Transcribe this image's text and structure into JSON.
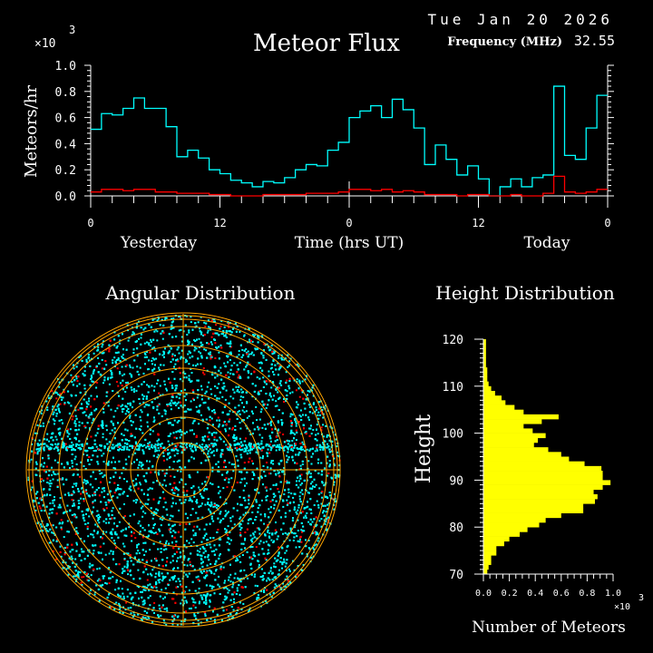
{
  "header": {
    "date": "Tue Jan 20 2026",
    "frequency_label": "Frequency (MHz)",
    "frequency_value": "32.55"
  },
  "colors": {
    "background": "#000000",
    "flux_all": "#00ffff",
    "flux_selected": "#ff0000",
    "rings": "#ffa500",
    "height_bars": "#ffff00",
    "axes": "#ffffff"
  },
  "chart_data": [
    {
      "type": "line",
      "step": true,
      "title": "Meteor Flux",
      "ylabel": "Meteors/hr",
      "xlabel": "Time (hrs UT)",
      "yscale_label": "×10",
      "yscale_exp": "3",
      "day_labels": [
        "Yesterday",
        "Today"
      ],
      "xlim": [
        0,
        48
      ],
      "ylim": [
        0,
        1.0
      ],
      "xticks": [
        0,
        12,
        24,
        36,
        48
      ],
      "xtick_labels": [
        "0",
        "12",
        "0",
        "12",
        "0"
      ],
      "yticks": [
        0,
        0.2,
        0.4,
        0.6,
        0.8,
        1.0
      ],
      "ytick_labels": [
        "0.0",
        "0.2",
        "0.4",
        "0.6",
        "0.8",
        "1.0"
      ],
      "series": [
        {
          "color": "#00ffff",
          "values": [
            0.51,
            0.63,
            0.62,
            0.67,
            0.75,
            0.67,
            0.67,
            0.53,
            0.3,
            0.35,
            0.29,
            0.2,
            0.17,
            0.12,
            0.1,
            0.07,
            0.11,
            0.1,
            0.14,
            0.2,
            0.24,
            0.23,
            0.35,
            0.41,
            0.6,
            0.65,
            0.69,
            0.6,
            0.74,
            0.66,
            0.52,
            0.24,
            0.39,
            0.28,
            0.16,
            0.23,
            0.13,
            0.0,
            0.07,
            0.13,
            0.07,
            0.14,
            0.16,
            0.84,
            0.31,
            0.28,
            0.52,
            0.77
          ]
        },
        {
          "color": "#ff0000",
          "values": [
            0.03,
            0.05,
            0.05,
            0.04,
            0.05,
            0.05,
            0.03,
            0.03,
            0.02,
            0.02,
            0.02,
            0.01,
            0.01,
            0.0,
            0.0,
            0.0,
            0.01,
            0.01,
            0.01,
            0.01,
            0.02,
            0.02,
            0.02,
            0.03,
            0.05,
            0.05,
            0.04,
            0.05,
            0.03,
            0.04,
            0.03,
            0.01,
            0.01,
            0.01,
            0.0,
            0.01,
            0.01,
            0.0,
            0.0,
            0.01,
            0.0,
            0.0,
            0.02,
            0.15,
            0.03,
            0.02,
            0.03,
            0.05
          ]
        }
      ],
      "grid": false
    },
    {
      "type": "scatter",
      "title": "Angular Distribution",
      "projection": "polar",
      "grid": true
    },
    {
      "type": "bar",
      "orientation": "horizontal",
      "title": "Height Distribution",
      "ylabel": "Height",
      "xlabel": "Number of Meteors",
      "xscale_label": "×10",
      "xscale_exp": "3",
      "ylim": [
        70,
        120
      ],
      "xlim": [
        0,
        1.0
      ],
      "yticks": [
        70,
        80,
        90,
        100,
        110,
        120
      ],
      "ytick_labels": [
        "70",
        "80",
        "90",
        "100",
        "110",
        "120"
      ],
      "xticks": [
        0,
        0.2,
        0.4,
        0.6,
        0.8,
        1.0
      ],
      "xtick_labels": [
        "0.0",
        "0.2",
        "0.4",
        "0.6",
        "0.8",
        "1.0"
      ],
      "bin_start": [
        70,
        71,
        72,
        73,
        74,
        75,
        76,
        77,
        78,
        79,
        80,
        81,
        82,
        83,
        84,
        85,
        86,
        87,
        88,
        89,
        90,
        91,
        92,
        93,
        94,
        95,
        96,
        97,
        98,
        99,
        100,
        101,
        102,
        103,
        104,
        105,
        106,
        107,
        108,
        109,
        110,
        111,
        112,
        113,
        114,
        115,
        116,
        117,
        118,
        119
      ],
      "values": [
        0.03,
        0.04,
        0.06,
        0.06,
        0.1,
        0.1,
        0.16,
        0.2,
        0.28,
        0.34,
        0.43,
        0.48,
        0.6,
        0.77,
        0.77,
        0.86,
        0.88,
        0.85,
        0.92,
        0.98,
        0.92,
        0.92,
        0.91,
        0.78,
        0.66,
        0.6,
        0.5,
        0.39,
        0.42,
        0.48,
        0.38,
        0.31,
        0.45,
        0.58,
        0.31,
        0.24,
        0.17,
        0.14,
        0.09,
        0.06,
        0.04,
        0.03,
        0.03,
        0.03,
        0.02,
        0.02,
        0.02,
        0.02,
        0.02,
        0.02
      ]
    }
  ]
}
